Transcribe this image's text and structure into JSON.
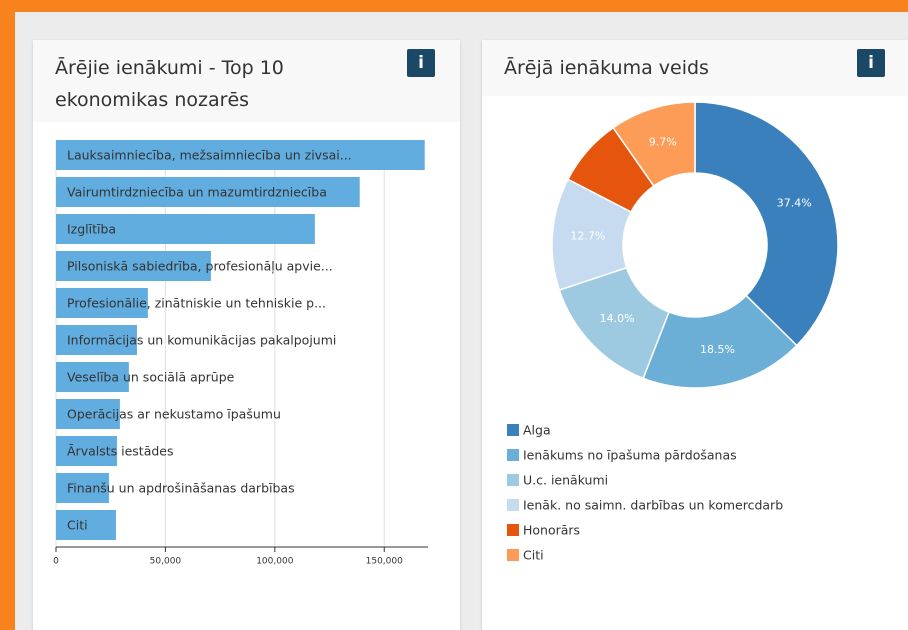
{
  "chart_data": [
    {
      "type": "hbar",
      "title": "Ārējie ienākumi - Top 10 ekonomikas nozarēs",
      "info_label": "i",
      "categories": [
        "Lauksaimniecība, mežsaimniecība un zivsai...",
        "Vairumtirdzniecība un mazumtirdzniecība",
        "Izglītība",
        "Pilsoniskā sabiedrība, profesionāļu apvie...",
        "Profesionālie, zinātniskie un tehniskie p...",
        "Informācijas un komunikācijas pakalpojumi",
        "Veselība un sociālā aprūpe",
        "Operācijas ar nekustamo īpašumu",
        "Ārvalsts iestādes",
        "Finanšu un apdrošināšanas darbības",
        "Citi"
      ],
      "values": [
        168500,
        138800,
        118300,
        70800,
        42000,
        37000,
        33300,
        29200,
        27900,
        24200,
        27400
      ],
      "color": "#62addf",
      "xlim": [
        0,
        170000
      ],
      "xticks": [
        0,
        {
          "value": 50000,
          "label": "50,000"
        },
        {
          "value": 100000,
          "label": "100,000"
        },
        {
          "value": 150000,
          "label": "150,000"
        }
      ],
      "grid": true
    },
    {
      "type": "donut",
      "title": "Ārējā ienākuma veids",
      "info_label": "i",
      "categories": [
        "Alga",
        "Ienākums no īpašuma pārdošanas",
        "U.c. ienākumi",
        "Ienāk. no saimn. darbības un komercdarb",
        "Honorārs",
        "Citi"
      ],
      "values": [
        37.4,
        18.5,
        14.0,
        12.7,
        7.7,
        9.7
      ],
      "value_labels": [
        "37.4%",
        "18.5%",
        "14.0%",
        "12.7%",
        null,
        "9.7%"
      ],
      "colors": [
        "#3a80bd",
        "#6baed6",
        "#9ecae1",
        "#c6dbef",
        "#e6550d",
        "#fd9c57"
      ],
      "legend": "bottom"
    }
  ]
}
